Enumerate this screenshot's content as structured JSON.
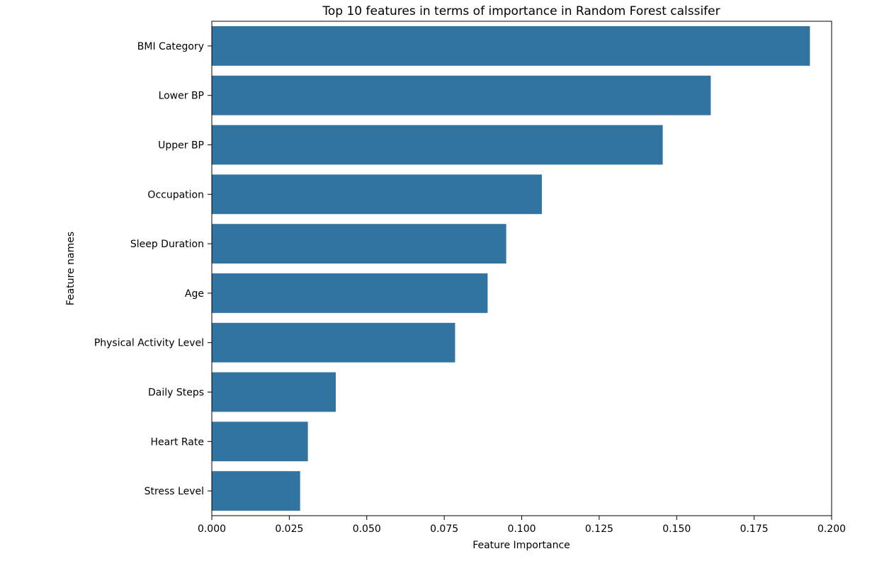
{
  "chart_data": {
    "type": "bar",
    "orientation": "horizontal",
    "title": "Top 10 features in terms of importance in Random Forest calssifer",
    "xlabel": "Feature Importance",
    "ylabel": "Feature names",
    "categories": [
      "BMI Category",
      "Lower BP",
      "Upper BP",
      "Occupation",
      "Sleep Duration",
      "Age",
      "Physical Activity Level",
      "Daily Steps",
      "Heart Rate",
      "Stress Level"
    ],
    "values": [
      0.193,
      0.161,
      0.1455,
      0.1065,
      0.095,
      0.089,
      0.0785,
      0.04,
      0.031,
      0.0285
    ],
    "xlim": [
      0,
      0.2
    ],
    "xticks": [
      0.0,
      0.025,
      0.05,
      0.075,
      0.1,
      0.125,
      0.15,
      0.175,
      0.2
    ],
    "xtick_labels": [
      "0.000",
      "0.025",
      "0.050",
      "0.075",
      "0.100",
      "0.125",
      "0.150",
      "0.175",
      "0.200"
    ],
    "bar_color": "#3274a1",
    "grid": false,
    "legend": false
  }
}
